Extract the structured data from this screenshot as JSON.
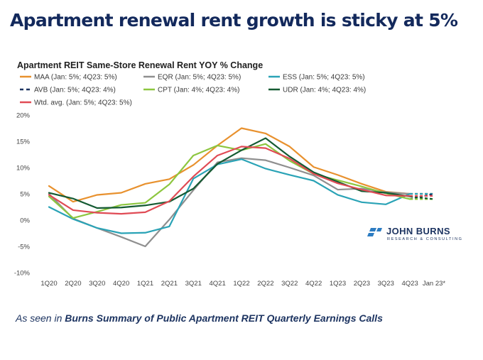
{
  "headline": "Apartment renewal rent growth is sticky at 5%",
  "footer": {
    "prefix": "As seen in ",
    "source": "Burns Summary of Public Apartment REIT Quarterly Earnings Calls"
  },
  "logo": {
    "name": "JOHN BURNS",
    "tagline": "RESEARCH & CONSULTING"
  },
  "chart_data": {
    "type": "line",
    "title": "Apartment REIT Same-Store Renewal Rent YOY % Change",
    "xlabel": "",
    "ylabel": "",
    "categories": [
      "1Q20",
      "2Q20",
      "3Q20",
      "4Q20",
      "1Q21",
      "2Q21",
      "3Q21",
      "4Q21",
      "1Q22",
      "2Q22",
      "3Q22",
      "4Q22",
      "1Q23",
      "2Q23",
      "3Q23",
      "4Q23",
      "Jan 23*"
    ],
    "yticks": [
      20,
      15,
      10,
      5,
      0,
      -5,
      -10
    ],
    "ytick_labels": [
      "20%",
      "15%",
      "10%",
      "5%",
      "0%",
      "-5%",
      "-10%"
    ],
    "ylim": [
      -10,
      20
    ],
    "grid": false,
    "legend": "top",
    "series": [
      {
        "name": "MAA (Jan: 5%; 4Q23: 5%)",
        "color": "#e8912e",
        "dashed": false,
        "values": [
          6.5,
          3.5,
          4.8,
          5.2,
          6.9,
          7.8,
          10.5,
          14.2,
          17.5,
          16.5,
          14.0,
          10.1,
          8.6,
          6.9,
          5.4,
          5.0,
          5.0
        ]
      },
      {
        "name": "EQR (Jan: 5%; 4Q23: 5%)",
        "color": "#8f8f8f",
        "dashed": false,
        "values": [
          5.0,
          0.3,
          -1.5,
          -3.2,
          -5.0,
          0.1,
          5.7,
          11.0,
          11.8,
          11.4,
          10.0,
          8.5,
          5.8,
          6.0,
          5.3,
          5.0,
          5.0
        ]
      },
      {
        "name": "ESS (Jan: 5%; 4Q23: 5%)",
        "color": "#2aa3b6",
        "dashed": false,
        "values": [
          2.5,
          0.2,
          -1.5,
          -2.5,
          -2.4,
          -1.2,
          7.9,
          10.6,
          11.6,
          9.8,
          8.6,
          7.5,
          4.8,
          3.4,
          3.0,
          5.0,
          5.0
        ]
      },
      {
        "name": "AVB (Jan: 5%; 4Q23: 4%)",
        "color": "#1d3461",
        "dashed": true,
        "values": [
          null,
          null,
          null,
          null,
          null,
          null,
          null,
          null,
          null,
          null,
          null,
          null,
          null,
          null,
          null,
          4.0,
          5.0
        ]
      },
      {
        "name": "CPT (Jan: 4%; 4Q23: 4%)",
        "color": "#8dc63f",
        "dashed": false,
        "values": [
          4.5,
          0.4,
          1.6,
          2.9,
          3.3,
          6.8,
          12.3,
          14.2,
          13.3,
          14.5,
          11.3,
          8.8,
          7.6,
          6.4,
          5.1,
          4.0,
          4.0
        ]
      },
      {
        "name": "UDR (Jan: 4%; 4Q23: 4%)",
        "color": "#145a32",
        "dashed": false,
        "values": [
          5.2,
          4.1,
          2.3,
          2.4,
          2.8,
          3.5,
          6.0,
          10.7,
          13.3,
          15.6,
          12.1,
          9.1,
          7.3,
          5.5,
          5.2,
          4.5,
          4.0
        ]
      },
      {
        "name": "Wtd. avg. (Jan: 5%; 4Q23: 5%)",
        "color": "#e04b55",
        "dashed": false,
        "values": [
          4.8,
          1.9,
          1.4,
          1.2,
          1.5,
          3.6,
          8.3,
          12.3,
          14.0,
          13.7,
          11.7,
          8.8,
          7.0,
          5.8,
          4.7,
          4.6,
          4.6
        ]
      }
    ]
  }
}
